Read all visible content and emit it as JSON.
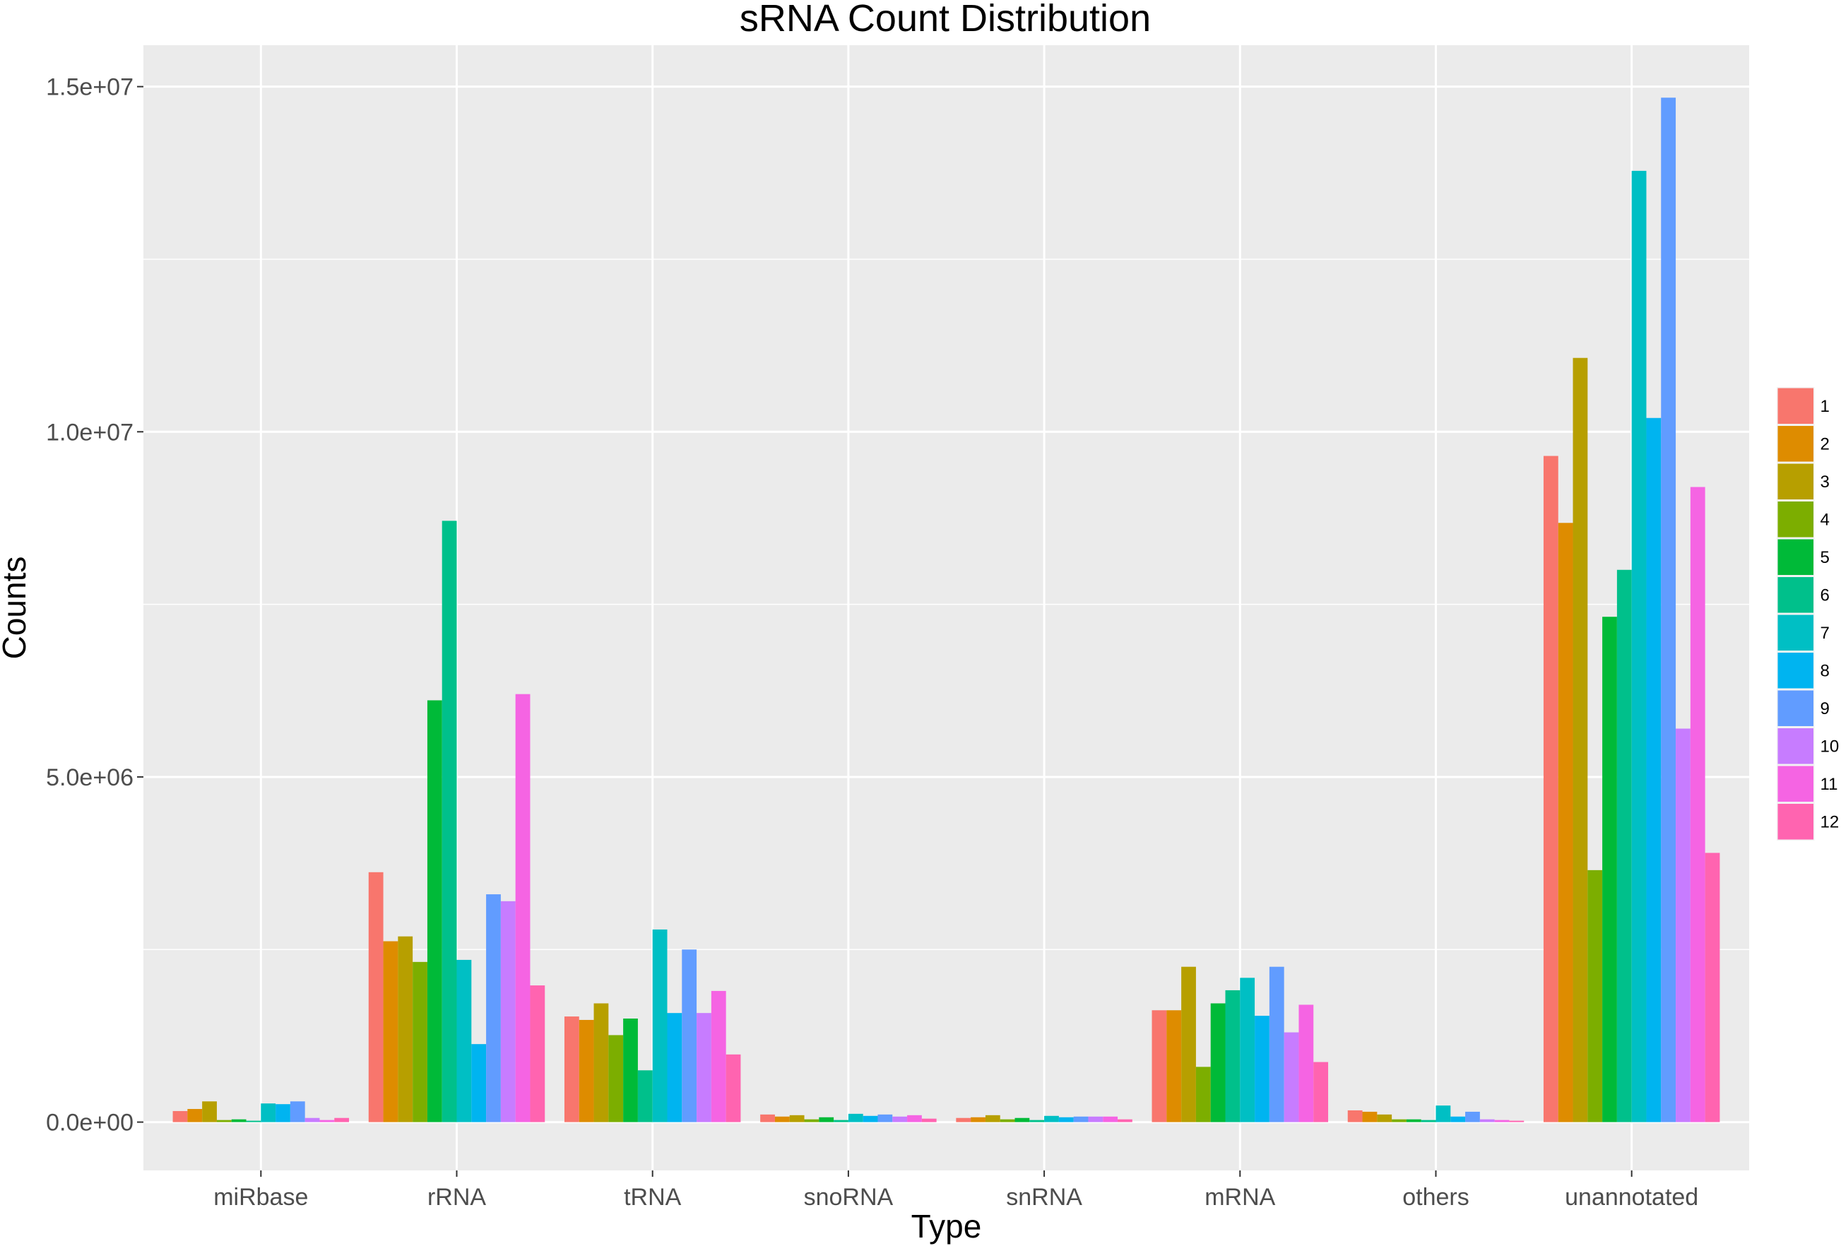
{
  "chart_data": {
    "type": "bar",
    "title": "sRNA Count Distribution",
    "xlabel": "Type",
    "ylabel": "Counts",
    "ylim": [
      -700000,
      15600000
    ],
    "yticks": [
      0,
      5000000,
      10000000,
      15000000
    ],
    "ytick_labels": [
      "0.0e+00",
      "5.0e+06",
      "1.0e+07",
      "1.5e+07"
    ],
    "grid": true,
    "legend": "right",
    "categories": [
      "miRbase",
      "rRNA",
      "tRNA",
      "snoRNA",
      "snRNA",
      "mRNA",
      "others",
      "unannotated"
    ],
    "series": [
      {
        "name": "1",
        "color": "#F8766D",
        "values": [
          160000,
          3620000,
          1530000,
          110000,
          60000,
          1620000,
          170000,
          9650000
        ]
      },
      {
        "name": "2",
        "color": "#DE8C00",
        "values": [
          190000,
          2620000,
          1480000,
          80000,
          70000,
          1620000,
          150000,
          8680000
        ]
      },
      {
        "name": "3",
        "color": "#B79F00",
        "values": [
          300000,
          2690000,
          1720000,
          100000,
          100000,
          2250000,
          110000,
          11070000
        ]
      },
      {
        "name": "4",
        "color": "#7CAE00",
        "values": [
          30000,
          2320000,
          1260000,
          40000,
          40000,
          800000,
          40000,
          3650000
        ]
      },
      {
        "name": "5",
        "color": "#00BA38",
        "values": [
          40000,
          6110000,
          1500000,
          70000,
          60000,
          1720000,
          40000,
          7320000
        ]
      },
      {
        "name": "6",
        "color": "#00C08B",
        "values": [
          20000,
          8710000,
          750000,
          30000,
          30000,
          1910000,
          30000,
          8000000
        ]
      },
      {
        "name": "7",
        "color": "#00BFC4",
        "values": [
          270000,
          2350000,
          2790000,
          120000,
          90000,
          2090000,
          240000,
          13780000
        ]
      },
      {
        "name": "8",
        "color": "#00B4F0",
        "values": [
          260000,
          1130000,
          1580000,
          90000,
          70000,
          1540000,
          80000,
          10200000
        ]
      },
      {
        "name": "9",
        "color": "#619CFF",
        "values": [
          300000,
          3300000,
          2500000,
          110000,
          80000,
          2250000,
          150000,
          14840000
        ]
      },
      {
        "name": "10",
        "color": "#C77CFF",
        "values": [
          60000,
          3200000,
          1580000,
          80000,
          80000,
          1300000,
          40000,
          5700000
        ]
      },
      {
        "name": "11",
        "color": "#F564E3",
        "values": [
          30000,
          6200000,
          1900000,
          100000,
          80000,
          1700000,
          30000,
          9200000
        ]
      },
      {
        "name": "12",
        "color": "#FF64B0",
        "values": [
          60000,
          1980000,
          980000,
          50000,
          40000,
          870000,
          20000,
          3900000
        ]
      }
    ]
  }
}
